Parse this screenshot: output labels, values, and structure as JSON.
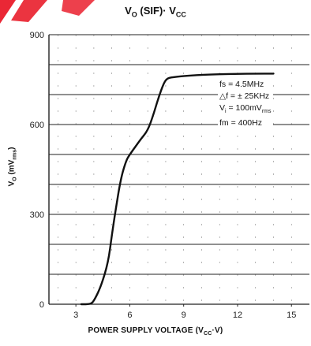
{
  "chart_data": {
    "type": "line",
    "title": "V",
    "title_sub": "O",
    "title_rest": " (SIF)· V",
    "title_sub2": "CC",
    "ylabel": "V",
    "ylabel_sub": "O",
    "ylabel_rest": " (mV",
    "ylabel_sub2": "rms",
    "ylabel_end": ")",
    "xlabel": "POWER SUPPLY VOLTAGE (V",
    "xlabel_sub": "CC",
    "xlabel_end": "·V)",
    "xlim": [
      1.5,
      16
    ],
    "ylim": [
      0,
      900
    ],
    "x_ticks": [
      3,
      6,
      9,
      12,
      15
    ],
    "y_ticks": [
      0,
      300,
      600,
      900
    ],
    "grid": true,
    "series": [
      {
        "x": [
          3.3,
          3.8,
          4.0,
          4.4,
          4.8,
          5.0,
          5.2,
          5.5,
          5.8,
          6.0,
          6.3,
          6.6,
          7.0,
          7.3,
          7.6,
          7.9,
          8.1,
          8.4,
          9.0,
          10.0,
          11.0,
          12.0,
          13.0,
          14.0
        ],
        "y": [
          0,
          0,
          10,
          60,
          140,
          230,
          310,
          420,
          480,
          500,
          525,
          550,
          580,
          630,
          690,
          740,
          755,
          758,
          762,
          766,
          768,
          769,
          770,
          770
        ]
      }
    ],
    "annotations": [
      {
        "text": "fs = 4.5MHz"
      },
      {
        "text": "△f = ± 25KHz"
      },
      {
        "text": "V",
        "sub": "i",
        "rest": " = 100mV",
        "sub2": "rms"
      },
      {
        "text": "fm = 400Hz"
      }
    ],
    "colors": {
      "curve": "#111111",
      "grid": "#222222",
      "watermark": "#e8101f"
    }
  }
}
